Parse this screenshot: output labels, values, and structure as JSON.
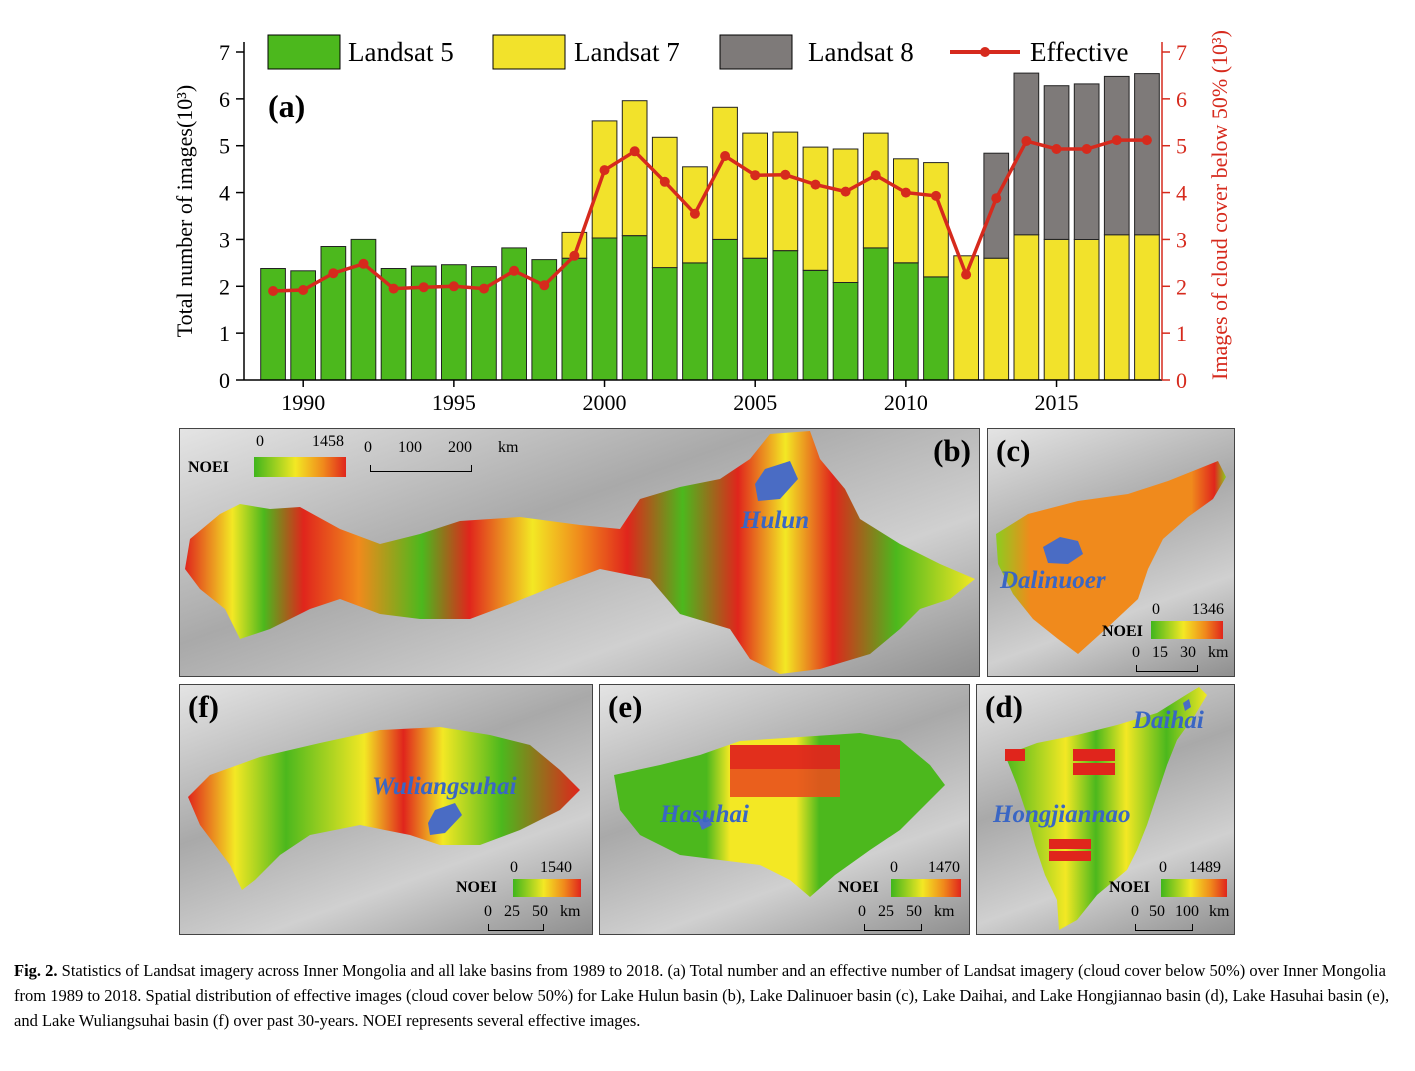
{
  "chart_data": {
    "type": "bar",
    "panel_label": "(a)",
    "years": [
      1989,
      1990,
      1991,
      1992,
      1993,
      1994,
      1995,
      1996,
      1997,
      1998,
      1999,
      2000,
      2001,
      2002,
      2003,
      2004,
      2005,
      2006,
      2007,
      2008,
      2009,
      2010,
      2011,
      2012,
      2013,
      2014,
      2015,
      2016,
      2017,
      2018
    ],
    "series": [
      {
        "name": "Landsat 5",
        "color": "#4cb81d",
        "values": [
          2.38,
          2.33,
          2.85,
          3.0,
          2.38,
          2.43,
          2.46,
          2.42,
          2.82,
          2.57,
          2.6,
          3.03,
          3.08,
          2.4,
          2.5,
          3.0,
          2.6,
          2.76,
          2.34,
          2.08,
          2.82,
          2.5,
          2.2,
          0,
          0,
          0,
          0,
          0,
          0,
          0
        ]
      },
      {
        "name": "Landsat 7",
        "color": "#f2e22b",
        "values": [
          0,
          0,
          0,
          0,
          0,
          0,
          0,
          0,
          0,
          0,
          0.55,
          2.5,
          2.88,
          2.78,
          2.05,
          2.82,
          2.67,
          2.53,
          2.63,
          2.85,
          2.45,
          2.22,
          2.44,
          2.65,
          2.6,
          3.1,
          3.0,
          3.0,
          3.1,
          3.1
        ]
      },
      {
        "name": "Landsat 8",
        "color": "#7e7a79",
        "values": [
          0,
          0,
          0,
          0,
          0,
          0,
          0,
          0,
          0,
          0,
          0,
          0,
          0,
          0,
          0,
          0,
          0,
          0,
          0,
          0,
          0,
          0,
          0,
          0,
          2.24,
          3.45,
          3.28,
          3.32,
          3.38,
          3.44
        ]
      }
    ],
    "effective": {
      "name": "Effective",
      "color": "#d62a1d",
      "values": [
        1.9,
        1.92,
        2.28,
        2.48,
        1.95,
        1.98,
        2.0,
        1.95,
        2.33,
        2.02,
        2.65,
        4.48,
        4.88,
        4.23,
        3.55,
        4.78,
        4.37,
        4.38,
        4.17,
        4.02,
        4.37,
        4.0,
        3.93,
        2.25,
        3.88,
        5.1,
        4.93,
        4.93,
        5.12,
        5.12
      ]
    },
    "y_left": {
      "label": "Total number of images(10³)",
      "range": [
        0,
        7
      ],
      "ticks": [
        "0",
        "1",
        "2",
        "3",
        "4",
        "5",
        "6",
        "7"
      ]
    },
    "y_right": {
      "label": "Images of cloud cover below 50% (10³)",
      "range": [
        0,
        7
      ],
      "ticks": [
        "0",
        "1",
        "2",
        "3",
        "4",
        "5",
        "6",
        "7"
      ]
    },
    "x_ticks": [
      "1990",
      "1995",
      "2000",
      "2005",
      "2010",
      "2015"
    ],
    "legend_position": "top"
  },
  "maps": {
    "b": {
      "label": "(b)",
      "lake": "Hulun",
      "legend_title": "NOEI",
      "min": "0",
      "max": "1458",
      "scale": [
        "0",
        "100",
        "200 km"
      ]
    },
    "c": {
      "label": "(c)",
      "lake": "Dalinuoer",
      "legend_title": "NOEI",
      "min": "0",
      "max": "1346",
      "scale": [
        "0",
        "15",
        "30 km"
      ]
    },
    "f": {
      "label": "(f)",
      "lake": "Wuliangsuhai",
      "legend_title": "NOEI",
      "min": "0",
      "max": "1540",
      "scale": [
        "0",
        "25",
        "50 km"
      ]
    },
    "e": {
      "label": "(e)",
      "lake": "Hasuhai",
      "legend_title": "NOEI",
      "min": "0",
      "max": "1470",
      "scale": [
        "0",
        "25",
        "50 km"
      ]
    },
    "d": {
      "label": "(d)",
      "lake": "Daihai",
      "lake2": "Hongjiannao",
      "legend_title": "NOEI",
      "min": "0",
      "max": "1489",
      "scale": [
        "0",
        "50",
        "100 km"
      ]
    }
  },
  "caption": {
    "label": "Fig. 2.",
    "text": "Statistics of Landsat imagery across Inner Mongolia and all lake basins from 1989 to 2018. (a) Total number and an effective number of Landsat imagery (cloud cover below 50%) over Inner Mongolia from 1989 to 2018. Spatial distribution of effective images (cloud cover below 50%) for Lake Hulun basin (b), Lake Dalinuoer basin (c), Lake Daihai, and Lake Hongjiannao basin (d), Lake Hasuhai basin (e), and Lake Wuliangsuhai basin (f) over past 30-years. NOEI represents several effective images."
  }
}
